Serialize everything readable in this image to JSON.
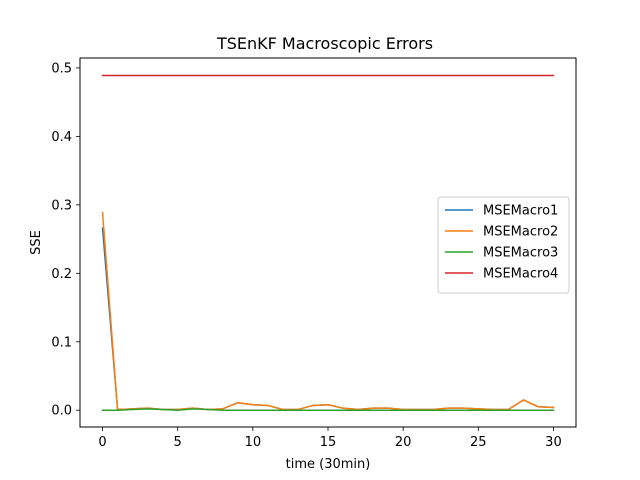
{
  "chart_data": {
    "type": "line",
    "title": "TSEnKF Macroscopic Errors",
    "xlabel": "time (30min)",
    "ylabel": "SSE",
    "xlim": [
      -1.5,
      31.5
    ],
    "ylim": [
      -0.0245,
      0.5145
    ],
    "xticks": [
      0,
      5,
      10,
      15,
      20,
      25,
      30
    ],
    "xtick_labels": [
      "0",
      "5",
      "10",
      "15",
      "20",
      "25",
      "30"
    ],
    "yticks": [
      0.0,
      0.1,
      0.2,
      0.3,
      0.4,
      0.5
    ],
    "ytick_labels": [
      "0.0",
      "0.1",
      "0.2",
      "0.3",
      "0.4",
      "0.5"
    ],
    "grid": false,
    "legend_position": "center-right",
    "x": [
      0,
      1,
      2,
      3,
      4,
      5,
      6,
      7,
      8,
      9,
      10,
      11,
      12,
      13,
      14,
      15,
      16,
      17,
      18,
      19,
      20,
      21,
      22,
      23,
      24,
      25,
      26,
      27,
      28,
      29,
      30
    ],
    "series": [
      {
        "name": "MSEMacro1",
        "color": "#1f77b4",
        "values": [
          0.266,
          0.001,
          0.002,
          0.003,
          0.001,
          0.001,
          0.003,
          0.001,
          0.002,
          0.011,
          0.008,
          0.007,
          0.001,
          0.001,
          0.007,
          0.008,
          0.003,
          0.001,
          0.003,
          0.003,
          0.001,
          0.001,
          0.001,
          0.003,
          0.003,
          0.002,
          0.001,
          0.001,
          0.015,
          0.005,
          0.004
        ]
      },
      {
        "name": "MSEMacro2",
        "color": "#ff7f0e",
        "values": [
          0.289,
          0.001,
          0.002,
          0.003,
          0.001,
          0.001,
          0.003,
          0.001,
          0.002,
          0.011,
          0.008,
          0.007,
          0.001,
          0.001,
          0.007,
          0.008,
          0.003,
          0.001,
          0.003,
          0.003,
          0.001,
          0.001,
          0.001,
          0.003,
          0.003,
          0.002,
          0.001,
          0.001,
          0.015,
          0.005,
          0.004
        ]
      },
      {
        "name": "MSEMacro3",
        "color": "#2ca02c",
        "values": [
          0.0,
          0.0,
          0.001,
          0.002,
          0.001,
          0.0,
          0.002,
          0.001,
          0.0,
          0.0,
          0.0,
          0.0,
          0.0,
          0.0,
          0.0,
          0.0,
          0.0,
          0.0,
          0.0,
          0.0,
          0.0,
          0.0,
          0.0,
          0.0,
          0.0,
          0.0,
          0.0,
          0.0,
          0.0,
          0.0,
          0.0
        ]
      },
      {
        "name": "MSEMacro4",
        "color": "#d62728",
        "values": [
          0.489,
          0.489,
          0.489,
          0.489,
          0.489,
          0.489,
          0.489,
          0.489,
          0.489,
          0.489,
          0.489,
          0.489,
          0.489,
          0.489,
          0.489,
          0.489,
          0.489,
          0.489,
          0.489,
          0.489,
          0.489,
          0.489,
          0.489,
          0.489,
          0.489,
          0.489,
          0.489,
          0.489,
          0.489,
          0.489,
          0.489
        ]
      }
    ]
  }
}
